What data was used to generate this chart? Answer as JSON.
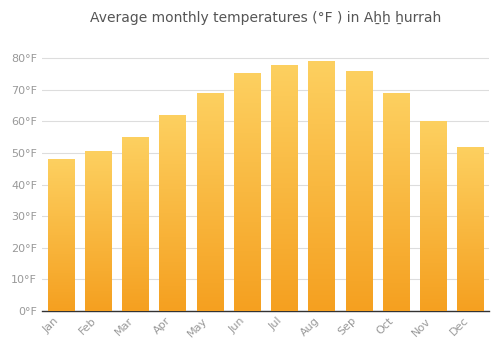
{
  "title": "Average monthly temperatures (°F ) in Aẖẖ ẖurrah",
  "months": [
    "Jan",
    "Feb",
    "Mar",
    "Apr",
    "May",
    "Jun",
    "Jul",
    "Aug",
    "Sep",
    "Oct",
    "Nov",
    "Dec"
  ],
  "values": [
    48,
    50.5,
    55,
    62,
    69,
    75.5,
    78,
    79,
    76,
    69,
    60,
    52
  ],
  "bar_color_top": "#FDB931",
  "bar_color_bottom": "#F5A623",
  "bar_edge_color": "#E0E0E0",
  "background_color": "#FFFFFF",
  "grid_color": "#DDDDDD",
  "text_color": "#999999",
  "title_color": "#555555",
  "ylim": [
    0,
    88
  ],
  "yticks": [
    0,
    10,
    20,
    30,
    40,
    50,
    60,
    70,
    80
  ],
  "title_fontsize": 10,
  "tick_fontsize": 8,
  "bar_width": 0.7
}
